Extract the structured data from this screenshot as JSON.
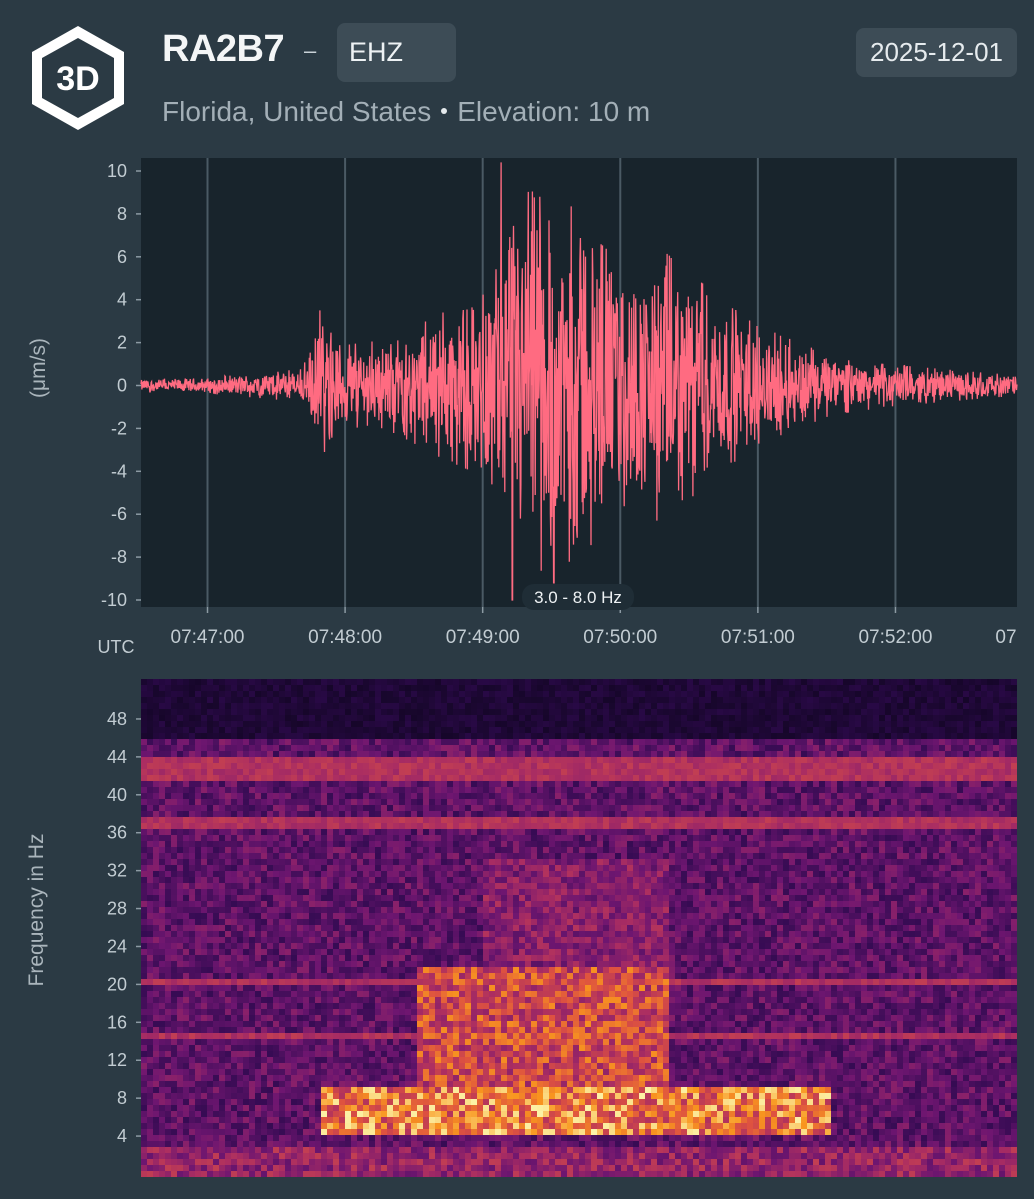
{
  "header": {
    "logo_text": "3D",
    "station_code": "RA2B7",
    "separator": "–",
    "channel": "EHZ",
    "date": "2025-12-01",
    "location": "Florida, United States",
    "elevation": "Elevation: 10 m"
  },
  "colors": {
    "background": "#2b3a44",
    "plot_background": "#18242c",
    "waveform": "#ff6b81",
    "gridline": "#4a5a64"
  },
  "chart_data": [
    {
      "type": "line",
      "name": "waveform",
      "title": "",
      "ylabel": "(μm/s)",
      "xlabel": "UTC",
      "ylim": [
        -10,
        10
      ],
      "yticks": [
        10,
        8,
        6,
        4,
        2,
        0,
        -2,
        -4,
        -6,
        -8,
        -10
      ],
      "xlim": [
        "07:46:31",
        "07:52:53"
      ],
      "xticks": [
        "07:47:00",
        "07:48:00",
        "07:49:00",
        "07:50:00",
        "07:51:00",
        "07:52:00",
        "07"
      ],
      "filter_label": "3.0 - 8.0 Hz",
      "grid": "vertical",
      "envelope": {
        "description_units": "seconds after 07:46:31 vs peak amplitude (μm/s)",
        "t": [
          0,
          30,
          70,
          78,
          90,
          110,
          130,
          150,
          160,
          170,
          180,
          190,
          200,
          215,
          230,
          250,
          270,
          285,
          300,
          320,
          340,
          360,
          382
        ],
        "amp": [
          0.3,
          0.4,
          0.8,
          3.0,
          2.0,
          2.3,
          3.5,
          4.5,
          7.0,
          10.4,
          7.5,
          9.2,
          7.0,
          5.5,
          6.5,
          4.5,
          2.8,
          2.2,
          1.5,
          1.1,
          0.9,
          0.7,
          0.5
        ]
      },
      "peaks": [
        {
          "t": 157,
          "y": 10.4
        },
        {
          "t": 162,
          "y": -10
        },
        {
          "t": 180,
          "y": -9.2
        },
        {
          "t": 193,
          "y": 6.3
        },
        {
          "t": 225,
          "y": 6.5
        },
        {
          "t": 225,
          "y": -6.3
        },
        {
          "t": 78,
          "y": 3.5
        },
        {
          "t": 80,
          "y": -3.1
        }
      ]
    },
    {
      "type": "heatmap",
      "name": "spectrogram",
      "title": "",
      "ylabel": "Frequency in Hz",
      "ylim": [
        0,
        50
      ],
      "yticks": [
        48,
        44,
        40,
        36,
        32,
        28,
        24,
        20,
        16,
        12,
        8,
        4
      ],
      "colormap": "inferno",
      "constant_lines_hz": [
        43.5,
        42,
        37,
        20.2,
        14.5
      ],
      "energy_regions": [
        {
          "t_start": 78,
          "t_end": 300,
          "f_low": 4,
          "f_high": 9,
          "intensity": 0.95
        },
        {
          "t_start": 120,
          "t_end": 230,
          "f_low": 9,
          "f_high": 22,
          "intensity": 0.8
        },
        {
          "t_start": 150,
          "t_end": 230,
          "f_low": 22,
          "f_high": 33,
          "intensity": 0.55
        }
      ]
    }
  ]
}
